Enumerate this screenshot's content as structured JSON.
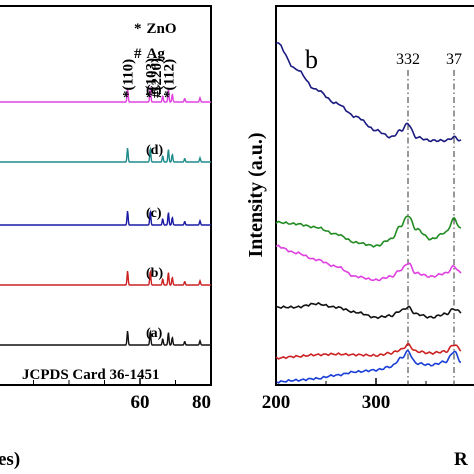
{
  "chart_data": [
    {
      "type": "line",
      "panel": "left (XRD, cropped)",
      "xlim": [
        20,
        80
      ],
      "xticks": [
        "60",
        "80"
      ],
      "xlabel_fragment": "es)",
      "legend": [
        {
          "marker": "*",
          "label": "ZnO"
        },
        {
          "marker": "#",
          "label": "Ag"
        }
      ],
      "peak_labels": [
        {
          "text": "*(110)",
          "x": 56.5
        },
        {
          "text": "*(103)",
          "x": 62.9
        },
        {
          "text": "#(220)",
          "x": 64.5
        },
        {
          "text": "*(112)",
          "x": 68.0
        }
      ],
      "reference_text": "JCPDS Card 36-1451",
      "series": [
        {
          "name": "(e)",
          "color": "#e040e0",
          "baseline": 0.86
        },
        {
          "name": "(d)",
          "color": "#1f8a8a",
          "baseline": 0.66
        },
        {
          "name": "(c)",
          "color": "#1a1aa6",
          "baseline": 0.45
        },
        {
          "name": "(b)",
          "color": "#cc2222",
          "baseline": 0.25
        },
        {
          "name": "(a)",
          "color": "#111111",
          "baseline": 0.05
        }
      ],
      "peaks": [
        {
          "x": 56.5,
          "h": 1.0
        },
        {
          "x": 62.9,
          "h": 1.0
        },
        {
          "x": 66.4,
          "h": 0.45
        },
        {
          "x": 68.0,
          "h": 0.9
        },
        {
          "x": 69.1,
          "h": 0.55
        },
        {
          "x": 72.6,
          "h": 0.25
        },
        {
          "x": 76.9,
          "h": 0.3
        }
      ]
    },
    {
      "type": "line",
      "panel": "right (Raman, cropped)",
      "panel_label": "b",
      "xlim": [
        200,
        400
      ],
      "xticks": [
        "200",
        "300"
      ],
      "ylabel": "Intensity (a.u.)",
      "xlabel_fragment": "R",
      "reference_lines": [
        {
          "label": "332",
          "x": 332
        },
        {
          "label": "37",
          "x": 378
        }
      ],
      "series": [
        {
          "color": "#1a1a80",
          "offset": 0.8,
          "points": [
            [
              200,
              1.0
            ],
            [
              220,
              0.92
            ],
            [
              240,
              0.86
            ],
            [
              260,
              0.82
            ],
            [
              280,
              0.78
            ],
            [
              300,
              0.74
            ],
            [
              315,
              0.72
            ],
            [
              325,
              0.74
            ],
            [
              332,
              0.76
            ],
            [
              340,
              0.72
            ],
            [
              355,
              0.71
            ],
            [
              370,
              0.71
            ],
            [
              378,
              0.72
            ],
            [
              385,
              0.71
            ]
          ]
        },
        {
          "color": "#228b22",
          "offset": 0.47,
          "points": [
            [
              200,
              0.47
            ],
            [
              220,
              0.465
            ],
            [
              240,
              0.455
            ],
            [
              260,
              0.435
            ],
            [
              280,
              0.41
            ],
            [
              300,
              0.4
            ],
            [
              315,
              0.42
            ],
            [
              325,
              0.46
            ],
            [
              332,
              0.49
            ],
            [
              340,
              0.45
            ],
            [
              355,
              0.42
            ],
            [
              370,
              0.44
            ],
            [
              378,
              0.48
            ],
            [
              385,
              0.45
            ]
          ]
        },
        {
          "color": "#e040e0",
          "offset": 0.39,
          "points": [
            [
              200,
              0.4
            ],
            [
              220,
              0.38
            ],
            [
              240,
              0.36
            ],
            [
              260,
              0.34
            ],
            [
              280,
              0.31
            ],
            [
              300,
              0.3
            ],
            [
              315,
              0.31
            ],
            [
              325,
              0.33
            ],
            [
              332,
              0.35
            ],
            [
              340,
              0.32
            ],
            [
              355,
              0.31
            ],
            [
              370,
              0.32
            ],
            [
              378,
              0.34
            ],
            [
              385,
              0.32
            ]
          ]
        },
        {
          "color": "#111111",
          "offset": 0.22,
          "points": [
            [
              200,
              0.22
            ],
            [
              220,
              0.22
            ],
            [
              240,
              0.23
            ],
            [
              260,
              0.22
            ],
            [
              280,
              0.205
            ],
            [
              300,
              0.19
            ],
            [
              315,
              0.195
            ],
            [
              325,
              0.21
            ],
            [
              332,
              0.22
            ],
            [
              340,
              0.2
            ],
            [
              355,
              0.19
            ],
            [
              370,
              0.2
            ],
            [
              378,
              0.215
            ],
            [
              385,
              0.205
            ]
          ]
        },
        {
          "color": "#cc2222",
          "offset": 0.07,
          "points": [
            [
              200,
              0.07
            ],
            [
              220,
              0.075
            ],
            [
              240,
              0.08
            ],
            [
              260,
              0.082
            ],
            [
              280,
              0.08
            ],
            [
              300,
              0.078
            ],
            [
              315,
              0.085
            ],
            [
              325,
              0.095
            ],
            [
              332,
              0.11
            ],
            [
              340,
              0.09
            ],
            [
              355,
              0.085
            ],
            [
              370,
              0.09
            ],
            [
              378,
              0.11
            ],
            [
              385,
              0.095
            ]
          ]
        },
        {
          "color": "#1a3fd6",
          "offset": 0.0,
          "points": [
            [
              200,
              0.0
            ],
            [
              220,
              0.005
            ],
            [
              240,
              0.01
            ],
            [
              260,
              0.02
            ],
            [
              280,
              0.03
            ],
            [
              300,
              0.035
            ],
            [
              315,
              0.045
            ],
            [
              325,
              0.07
            ],
            [
              332,
              0.09
            ],
            [
              340,
              0.055
            ],
            [
              355,
              0.05
            ],
            [
              370,
              0.06
            ],
            [
              378,
              0.09
            ],
            [
              385,
              0.06
            ]
          ]
        }
      ]
    }
  ]
}
